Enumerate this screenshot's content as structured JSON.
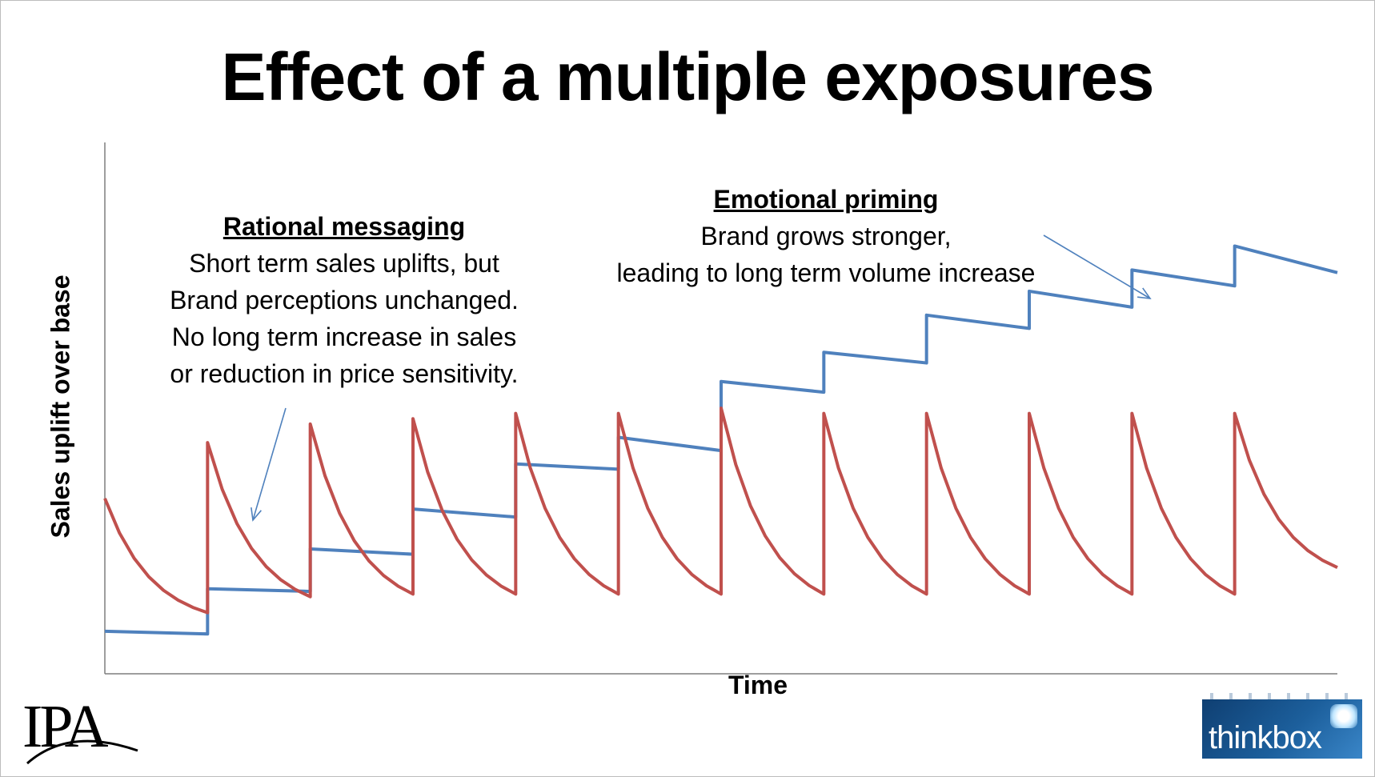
{
  "page": {
    "title": "Effect of a multiple exposures"
  },
  "chart_data": {
    "type": "line",
    "xlabel": "Time",
    "ylabel": "Sales uplift over base",
    "x_ticks_shown": false,
    "y_ticks_shown": false,
    "grid": false,
    "legend": "none",
    "xlim": [
      0,
      12
    ],
    "ylim": [
      0,
      10
    ],
    "series": [
      {
        "color": "#4f81bd",
        "points": [
          [
            0,
            0.8
          ],
          [
            1,
            0.75
          ],
          [
            1,
            1.6
          ],
          [
            2,
            1.55
          ],
          [
            2,
            2.35
          ],
          [
            3,
            2.25
          ],
          [
            3,
            3.1
          ],
          [
            4,
            2.95
          ],
          [
            4,
            3.95
          ],
          [
            5,
            3.85
          ],
          [
            5,
            4.45
          ],
          [
            6,
            4.2
          ],
          [
            6,
            5.5
          ],
          [
            7,
            5.3
          ],
          [
            7,
            6.05
          ],
          [
            8,
            5.85
          ],
          [
            8,
            6.75
          ],
          [
            9,
            6.5
          ],
          [
            9,
            7.2
          ],
          [
            10,
            6.9
          ],
          [
            10,
            7.6
          ],
          [
            11,
            7.3
          ],
          [
            11,
            8.05
          ],
          [
            12,
            7.55
          ],
          [
            12,
            7.55
          ]
        ]
      },
      {
        "color": "#c0504d",
        "decay_points": 7,
        "peaks": [
          [
            0,
            3.3
          ],
          [
            1,
            4.35
          ],
          [
            2,
            4.7
          ],
          [
            3,
            4.8
          ],
          [
            4,
            4.9
          ],
          [
            5,
            4.9
          ],
          [
            6,
            5.0
          ],
          [
            7,
            4.9
          ],
          [
            8,
            4.9
          ],
          [
            9,
            4.9
          ],
          [
            10,
            4.9
          ],
          [
            11,
            4.9
          ]
        ],
        "troughs": [
          [
            1,
            1.15
          ],
          [
            2,
            1.45
          ],
          [
            3,
            1.5
          ],
          [
            4,
            1.5
          ],
          [
            5,
            1.5
          ],
          [
            6,
            1.5
          ],
          [
            7,
            1.5
          ],
          [
            8,
            1.5
          ],
          [
            9,
            1.5
          ],
          [
            10,
            1.5
          ],
          [
            11,
            1.5
          ],
          [
            12,
            2.0
          ]
        ]
      }
    ],
    "annotations": [
      {
        "id": "rational",
        "heading": "Rational messaging",
        "lines": [
          "Short term sales uplifts, but",
          "Brand perceptions unchanged.",
          "No long term increase in sales",
          "or reduction in price sensitivity."
        ],
        "color": "#4f81bd"
      },
      {
        "id": "emotional",
        "heading": "Emotional priming",
        "lines": [
          "Brand grows stronger,",
          "leading to long term volume increase"
        ],
        "color": "#4f81bd"
      }
    ]
  },
  "logos": {
    "left": {
      "text": "IPA"
    },
    "right": {
      "text": "thinkbox"
    }
  }
}
